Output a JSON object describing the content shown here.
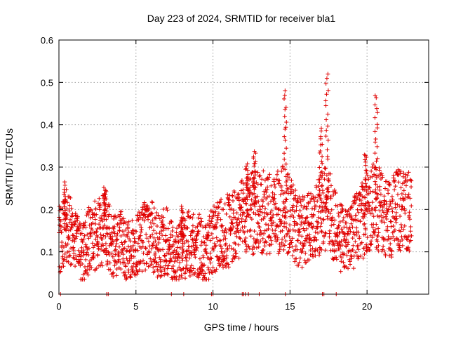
{
  "chart_data": {
    "type": "scatter",
    "title": "Day 223 of 2024, SRMTID for receiver bla1",
    "xlabel": "GPS time / hours",
    "ylabel": "SRMTID / TECUs",
    "xlim": [
      0,
      24
    ],
    "ylim": [
      0,
      0.6
    ],
    "xticks": [
      "0",
      "5",
      "10",
      "15",
      "20"
    ],
    "yticks": [
      "0",
      "0.1",
      "0.2",
      "0.3",
      "0.4",
      "0.5",
      "0.6"
    ],
    "grid": true,
    "marker": "plus",
    "color": "#e00000",
    "trend": [
      [
        0.0,
        0.13
      ],
      [
        0.5,
        0.15
      ],
      [
        1.0,
        0.14
      ],
      [
        1.5,
        0.09
      ],
      [
        2.0,
        0.13
      ],
      [
        2.5,
        0.14
      ],
      [
        3.0,
        0.16
      ],
      [
        3.5,
        0.11
      ],
      [
        4.0,
        0.12
      ],
      [
        4.5,
        0.1
      ],
      [
        5.0,
        0.11
      ],
      [
        5.5,
        0.14
      ],
      [
        6.0,
        0.14
      ],
      [
        6.5,
        0.11
      ],
      [
        7.0,
        0.13
      ],
      [
        7.5,
        0.08
      ],
      [
        8.0,
        0.11
      ],
      [
        8.5,
        0.12
      ],
      [
        9.0,
        0.12
      ],
      [
        9.5,
        0.09
      ],
      [
        10.0,
        0.13
      ],
      [
        10.5,
        0.14
      ],
      [
        11.0,
        0.15
      ],
      [
        11.5,
        0.17
      ],
      [
        12.0,
        0.18
      ],
      [
        12.5,
        0.19
      ],
      [
        13.0,
        0.2
      ],
      [
        13.5,
        0.19
      ],
      [
        14.0,
        0.18
      ],
      [
        14.5,
        0.21
      ],
      [
        15.0,
        0.18
      ],
      [
        15.5,
        0.15
      ],
      [
        16.0,
        0.15
      ],
      [
        16.5,
        0.16
      ],
      [
        17.0,
        0.19
      ],
      [
        17.5,
        0.21
      ],
      [
        18.0,
        0.15
      ],
      [
        18.5,
        0.12
      ],
      [
        19.0,
        0.14
      ],
      [
        19.5,
        0.16
      ],
      [
        20.0,
        0.2
      ],
      [
        20.5,
        0.21
      ],
      [
        21.0,
        0.19
      ],
      [
        21.5,
        0.18
      ],
      [
        22.0,
        0.2
      ],
      [
        22.5,
        0.2
      ],
      [
        22.9,
        0.2
      ]
    ],
    "peaks": [
      {
        "x": 0.4,
        "y": 0.26
      },
      {
        "x": 3.0,
        "y": 0.25
      },
      {
        "x": 8.0,
        "y": 0.21
      },
      {
        "x": 12.2,
        "y": 0.31
      },
      {
        "x": 12.7,
        "y": 0.34
      },
      {
        "x": 14.7,
        "y": 0.48
      },
      {
        "x": 17.0,
        "y": 0.39
      },
      {
        "x": 17.4,
        "y": 0.52
      },
      {
        "x": 19.9,
        "y": 0.33
      },
      {
        "x": 20.6,
        "y": 0.47
      }
    ],
    "zero_points_x": [
      0.1,
      3.1,
      3.2,
      7.3,
      8.1,
      9.9,
      10.0,
      11.9,
      12.0,
      12.1,
      12.3,
      13.0,
      14.7,
      17.1,
      17.2,
      18.0
    ]
  }
}
